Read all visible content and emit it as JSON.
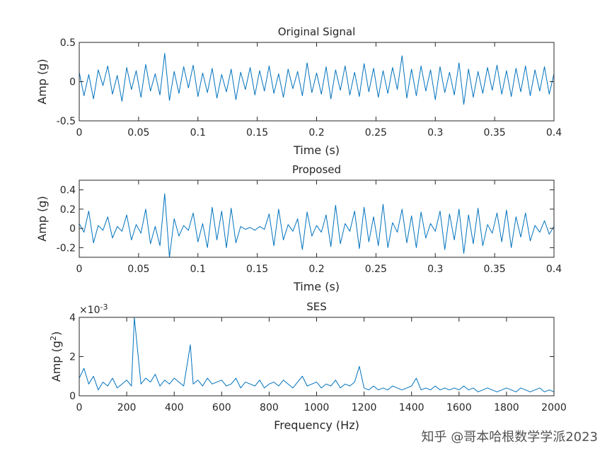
{
  "chart_data": [
    {
      "type": "line",
      "title": "Original Signal",
      "xlabel": "Time (s)",
      "ylabel": [
        "Amp (g)"
      ],
      "x": [
        0,
        0.004,
        0.008,
        0.012,
        0.016,
        0.02,
        0.024,
        0.028,
        0.032,
        0.036,
        0.04,
        0.044,
        0.048,
        0.052,
        0.056,
        0.06,
        0.064,
        0.068,
        0.072,
        0.076,
        0.08,
        0.084,
        0.088,
        0.092,
        0.096,
        0.1,
        0.104,
        0.108,
        0.112,
        0.116,
        0.12,
        0.124,
        0.128,
        0.132,
        0.136,
        0.14,
        0.144,
        0.148,
        0.152,
        0.156,
        0.16,
        0.164,
        0.168,
        0.172,
        0.176,
        0.18,
        0.184,
        0.188,
        0.192,
        0.196,
        0.2,
        0.204,
        0.208,
        0.212,
        0.216,
        0.22,
        0.224,
        0.228,
        0.232,
        0.236,
        0.24,
        0.244,
        0.248,
        0.252,
        0.256,
        0.26,
        0.264,
        0.268,
        0.272,
        0.276,
        0.28,
        0.284,
        0.288,
        0.292,
        0.296,
        0.3,
        0.304,
        0.308,
        0.312,
        0.316,
        0.32,
        0.324,
        0.328,
        0.332,
        0.336,
        0.34,
        0.344,
        0.348,
        0.352,
        0.356,
        0.36,
        0.364,
        0.368,
        0.372,
        0.376,
        0.38,
        0.384,
        0.388,
        0.392,
        0.396,
        0.4
      ],
      "series": [
        {
          "color": "#0072bd",
          "values": [
            0.12,
            -0.18,
            0.09,
            -0.22,
            0.15,
            -0.05,
            0.2,
            -0.16,
            0.08,
            -0.25,
            0.18,
            -0.1,
            0.14,
            -0.2,
            0.22,
            -0.12,
            0.1,
            -0.17,
            0.36,
            -0.24,
            0.13,
            -0.15,
            0.19,
            -0.08,
            0.21,
            -0.19,
            0.11,
            -0.14,
            0.17,
            -0.21,
            0.09,
            -0.13,
            0.16,
            -0.23,
            0.12,
            -0.1,
            0.18,
            -0.17,
            0.14,
            -0.12,
            0.2,
            -0.15,
            0.1,
            -0.2,
            0.16,
            -0.09,
            0.13,
            -0.18,
            0.24,
            -0.14,
            0.11,
            -0.16,
            0.19,
            -0.22,
            0.15,
            -0.11,
            0.2,
            -0.17,
            0.12,
            -0.19,
            0.23,
            -0.13,
            0.17,
            -0.2,
            0.14,
            -0.15,
            0.18,
            -0.1,
            0.33,
            -0.21,
            0.16,
            -0.18,
            0.2,
            -0.12,
            0.15,
            -0.23,
            0.19,
            -0.14,
            0.12,
            -0.17,
            0.24,
            -0.29,
            0.16,
            -0.2,
            0.13,
            -0.15,
            0.18,
            -0.11,
            0.21,
            -0.16,
            0.14,
            -0.19,
            0.17,
            -0.13,
            0.2,
            -0.18,
            0.15,
            -0.12,
            0.19,
            -0.16,
            0.1
          ]
        }
      ],
      "xlim": [
        0,
        0.4
      ],
      "xticks": [
        0,
        0.05,
        0.1,
        0.15,
        0.2,
        0.25,
        0.3,
        0.35,
        0.4
      ],
      "ylim": [
        -0.5,
        0.5
      ],
      "yticks": [
        -0.5,
        0,
        0.5
      ]
    },
    {
      "type": "line",
      "title": "Proposed",
      "xlabel": "Time (s)",
      "ylabel": [
        "Amp (g)"
      ],
      "x": [
        0,
        0.004,
        0.008,
        0.012,
        0.016,
        0.02,
        0.024,
        0.028,
        0.032,
        0.036,
        0.04,
        0.044,
        0.048,
        0.052,
        0.056,
        0.06,
        0.064,
        0.068,
        0.072,
        0.076,
        0.08,
        0.084,
        0.088,
        0.092,
        0.096,
        0.1,
        0.104,
        0.108,
        0.112,
        0.116,
        0.12,
        0.124,
        0.128,
        0.132,
        0.136,
        0.14,
        0.144,
        0.148,
        0.152,
        0.156,
        0.16,
        0.164,
        0.168,
        0.172,
        0.176,
        0.18,
        0.184,
        0.188,
        0.192,
        0.196,
        0.2,
        0.204,
        0.208,
        0.212,
        0.216,
        0.22,
        0.224,
        0.228,
        0.232,
        0.236,
        0.24,
        0.244,
        0.248,
        0.252,
        0.256,
        0.26,
        0.264,
        0.268,
        0.272,
        0.276,
        0.28,
        0.284,
        0.288,
        0.292,
        0.296,
        0.3,
        0.304,
        0.308,
        0.312,
        0.316,
        0.32,
        0.324,
        0.328,
        0.332,
        0.336,
        0.34,
        0.344,
        0.348,
        0.352,
        0.356,
        0.36,
        0.364,
        0.368,
        0.372,
        0.376,
        0.38,
        0.384,
        0.388,
        0.392,
        0.396,
        0.4
      ],
      "series": [
        {
          "color": "#0072bd",
          "values": [
            0.05,
            -0.04,
            0.18,
            -0.15,
            0.03,
            -0.02,
            0.12,
            -0.1,
            0.02,
            -0.03,
            0.14,
            -0.12,
            0.04,
            -0.05,
            0.2,
            -0.16,
            0.02,
            -0.18,
            0.36,
            -0.3,
            0.1,
            -0.08,
            0.03,
            -0.02,
            0.16,
            -0.14,
            0.05,
            -0.2,
            0.22,
            -0.12,
            0.18,
            -0.2,
            0.21,
            -0.15,
            0.02,
            -0.01,
            0.01,
            -0.02,
            0.02,
            -0.01,
            0.15,
            -0.18,
            0.2,
            -0.12,
            0.04,
            -0.03,
            0.1,
            -0.22,
            0.17,
            -0.08,
            0.03,
            -0.04,
            0.14,
            -0.19,
            0.24,
            -0.16,
            0.05,
            -0.03,
            0.18,
            -0.21,
            0.22,
            -0.14,
            0.12,
            -0.18,
            0.25,
            -0.2,
            0.06,
            -0.04,
            0.2,
            -0.15,
            0.13,
            -0.2,
            0.17,
            -0.1,
            0.05,
            -0.03,
            0.18,
            -0.22,
            0.15,
            -0.12,
            0.2,
            -0.26,
            0.14,
            -0.16,
            0.21,
            -0.18,
            0.04,
            -0.05,
            0.16,
            -0.14,
            0.19,
            -0.2,
            0.12,
            -0.09,
            0.16,
            -0.13,
            0.03,
            -0.04,
            0.08,
            -0.06,
            0.02
          ]
        }
      ],
      "xlim": [
        0,
        0.4
      ],
      "xticks": [
        0,
        0.05,
        0.1,
        0.15,
        0.2,
        0.25,
        0.3,
        0.35,
        0.4
      ],
      "ylim": [
        -0.3,
        0.5
      ],
      "yticks": [
        -0.2,
        0,
        0.2,
        0.4
      ]
    },
    {
      "type": "line",
      "title": "SES",
      "xlabel": "Frequency (Hz)",
      "ylabel": [
        "Amp (g",
        "2",
        ")"
      ],
      "y_exponent": [
        "×10",
        "-3"
      ],
      "x": [
        0,
        20,
        40,
        60,
        80,
        100,
        120,
        140,
        160,
        180,
        200,
        220,
        232,
        260,
        280,
        300,
        320,
        340,
        360,
        380,
        400,
        420,
        440,
        468,
        480,
        500,
        520,
        540,
        560,
        580,
        600,
        620,
        640,
        660,
        680,
        700,
        720,
        740,
        760,
        780,
        800,
        820,
        840,
        860,
        880,
        900,
        920,
        940,
        960,
        980,
        1000,
        1020,
        1040,
        1060,
        1080,
        1100,
        1120,
        1140,
        1160,
        1180,
        1200,
        1220,
        1240,
        1260,
        1280,
        1300,
        1320,
        1340,
        1360,
        1380,
        1400,
        1420,
        1440,
        1460,
        1480,
        1500,
        1520,
        1540,
        1560,
        1580,
        1600,
        1620,
        1640,
        1660,
        1680,
        1700,
        1720,
        1740,
        1760,
        1780,
        1800,
        1820,
        1840,
        1860,
        1880,
        1900,
        1920,
        1940,
        1960,
        1980,
        2000
      ],
      "series": [
        {
          "color": "#0072bd",
          "values": [
            0.9,
            1.4,
            0.6,
            1.0,
            0.3,
            0.7,
            0.5,
            0.9,
            0.4,
            0.6,
            0.8,
            0.5,
            4.0,
            0.6,
            0.9,
            0.7,
            1.1,
            0.5,
            0.8,
            0.6,
            0.9,
            0.7,
            0.5,
            2.6,
            0.6,
            0.8,
            0.5,
            0.9,
            0.6,
            0.7,
            0.8,
            0.5,
            0.6,
            0.9,
            0.4,
            0.7,
            0.6,
            0.5,
            0.8,
            0.4,
            0.6,
            0.7,
            0.5,
            0.8,
            0.6,
            0.4,
            0.7,
            1.0,
            0.5,
            0.6,
            0.7,
            0.4,
            0.6,
            0.5,
            0.8,
            0.4,
            0.6,
            0.5,
            0.7,
            1.5,
            0.4,
            0.3,
            0.5,
            0.3,
            0.4,
            0.3,
            0.5,
            0.4,
            0.3,
            0.4,
            0.5,
            0.9,
            0.3,
            0.4,
            0.3,
            0.5,
            0.3,
            0.4,
            0.3,
            0.4,
            0.3,
            0.5,
            0.3,
            0.4,
            0.2,
            0.3,
            0.4,
            0.3,
            0.2,
            0.3,
            0.4,
            0.3,
            0.2,
            0.4,
            0.3,
            0.2,
            0.3,
            0.4,
            0.2,
            0.3,
            0.2
          ]
        }
      ],
      "xlim": [
        0,
        2000
      ],
      "xticks": [
        0,
        200,
        400,
        600,
        800,
        1000,
        1200,
        1400,
        1600,
        1800,
        2000
      ],
      "ylim": [
        0,
        4
      ],
      "yticks": [
        0,
        2,
        4
      ]
    }
  ],
  "watermark": "知乎 @哥本哈根数学学派2023"
}
